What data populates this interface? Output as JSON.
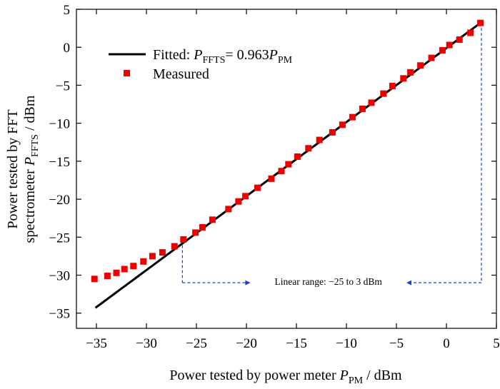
{
  "chart_data": {
    "type": "scatter",
    "xlim": [
      -37,
      5
    ],
    "ylim": [
      -37,
      5
    ],
    "x_ticks": [
      -35,
      -30,
      -25,
      -20,
      -15,
      -10,
      -5,
      0,
      5
    ],
    "y_ticks": [
      5,
      0,
      -5,
      -10,
      -15,
      -20,
      -25,
      -30,
      -35
    ],
    "x_tick_labels": [
      "−35",
      "−30",
      "−25",
      "−20",
      "−15",
      "−10",
      "−5",
      "0",
      "5"
    ],
    "y_tick_labels": [
      "5",
      "0",
      "−5",
      "−10",
      "−15",
      "−20",
      "−25",
      "−30",
      "−35"
    ],
    "xlabel": {
      "prefix": "Power tested by power meter ",
      "var": "P",
      "sub": "PM",
      "suffix": " / dBm"
    },
    "ylabel": {
      "line1": "Power tested by FFT",
      "line2_prefix": "spectrometer ",
      "var": "P",
      "sub": "FFTS",
      "suffix": " / dBm"
    },
    "legend": {
      "position": "top-left",
      "fitted": {
        "prefix": "Fitted: ",
        "var1": "P",
        "sub1": "FFTS",
        "mid": "= 0.963",
        "var2": "P",
        "sub2": "PM"
      },
      "measured": "Measured"
    },
    "series": [
      {
        "name": "Fitted",
        "kind": "line",
        "color": "#000000",
        "x": [
          -35.1,
          3.4
        ],
        "y": [
          -34.3,
          3.2
        ]
      },
      {
        "name": "Measured",
        "kind": "scatter",
        "color": "#ee0000",
        "x": [
          -35.2,
          -33.9,
          -33.0,
          -32.2,
          -31.3,
          -30.3,
          -29.4,
          -28.4,
          -27.2,
          -26.3,
          -25.1,
          -24.4,
          -23.4,
          -21.8,
          -20.8,
          -20.1,
          -18.9,
          -17.5,
          -16.5,
          -15.8,
          -14.9,
          -13.8,
          -12.7,
          -11.4,
          -10.4,
          -9.4,
          -8.4,
          -7.5,
          -6.3,
          -5.4,
          -4.3,
          -3.6,
          -2.6,
          -1.5,
          -0.4,
          0.3,
          1.3,
          2.4,
          3.4
        ],
        "y": [
          -30.5,
          -30.1,
          -29.7,
          -29.2,
          -28.8,
          -28.2,
          -27.5,
          -27.0,
          -26.2,
          -25.3,
          -24.4,
          -23.7,
          -22.7,
          -21.3,
          -20.3,
          -19.6,
          -18.5,
          -17.3,
          -16.3,
          -15.4,
          -14.4,
          -13.3,
          -12.2,
          -11.2,
          -10.2,
          -9.2,
          -8.1,
          -7.3,
          -6.1,
          -5.1,
          -4.1,
          -3.3,
          -2.4,
          -1.4,
          -0.4,
          0.3,
          1.0,
          1.9,
          3.2
        ]
      }
    ],
    "annotation": {
      "text": "Linear range: −25 to 3 dBm",
      "from_x": -26.4,
      "to_x": 3.5,
      "y": -31.0,
      "color": "#1f3fd8"
    }
  }
}
